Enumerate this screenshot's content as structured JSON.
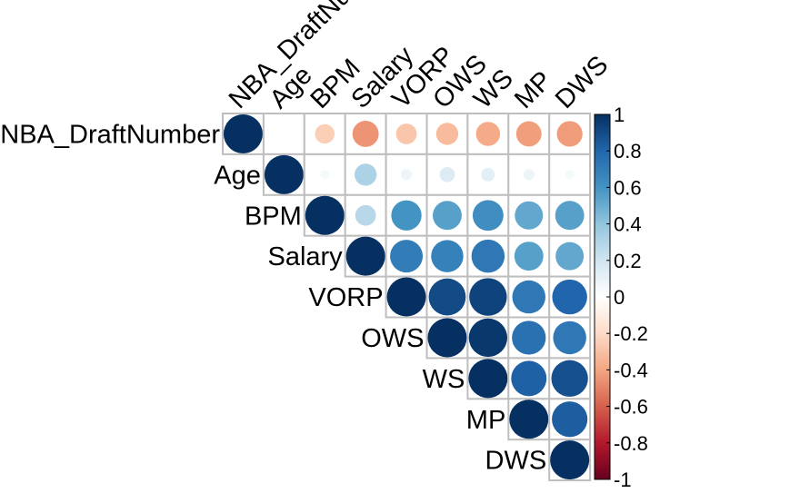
{
  "chart_data": {
    "type": "heatmap",
    "variant": "upper-triangle circle correlation matrix",
    "variables": [
      "NBA_DraftNumber",
      "Age",
      "BPM",
      "Salary",
      "VORP",
      "OWS",
      "WS",
      "MP",
      "DWS"
    ],
    "matrix": [
      [
        1.0,
        0.0,
        -0.25,
        -0.45,
        -0.28,
        -0.32,
        -0.38,
        -0.42,
        -0.43
      ],
      [
        null,
        1.0,
        0.05,
        0.32,
        0.08,
        0.15,
        0.12,
        0.08,
        0.05
      ],
      [
        null,
        null,
        1.0,
        0.28,
        0.6,
        0.55,
        0.62,
        0.52,
        0.55
      ],
      [
        null,
        null,
        null,
        1.0,
        0.7,
        0.68,
        0.72,
        0.55,
        0.52
      ],
      [
        null,
        null,
        null,
        null,
        1.0,
        0.9,
        0.93,
        0.72,
        0.8
      ],
      [
        null,
        null,
        null,
        null,
        null,
        1.0,
        0.97,
        0.75,
        0.72
      ],
      [
        null,
        null,
        null,
        null,
        null,
        null,
        1.0,
        0.82,
        0.88
      ],
      [
        null,
        null,
        null,
        null,
        null,
        null,
        null,
        1.0,
        0.83
      ],
      [
        null,
        null,
        null,
        null,
        null,
        null,
        null,
        null,
        1.0
      ]
    ],
    "color_scale": {
      "ticks": [
        "-1",
        "-0.8",
        "-0.6",
        "-0.4",
        "-0.2",
        "0",
        "0.2",
        "0.4",
        "0.6",
        "0.8",
        "1"
      ],
      "range": [
        -1,
        1
      ],
      "stops": [
        "#67001F",
        "#B2182B",
        "#D6604D",
        "#F4A582",
        "#FDDBC7",
        "#FFFFFF",
        "#D1E5F0",
        "#92C5DE",
        "#4393C3",
        "#2166AC",
        "#053061"
      ]
    },
    "grid_color": "#BEBEBE",
    "legend": "right"
  }
}
